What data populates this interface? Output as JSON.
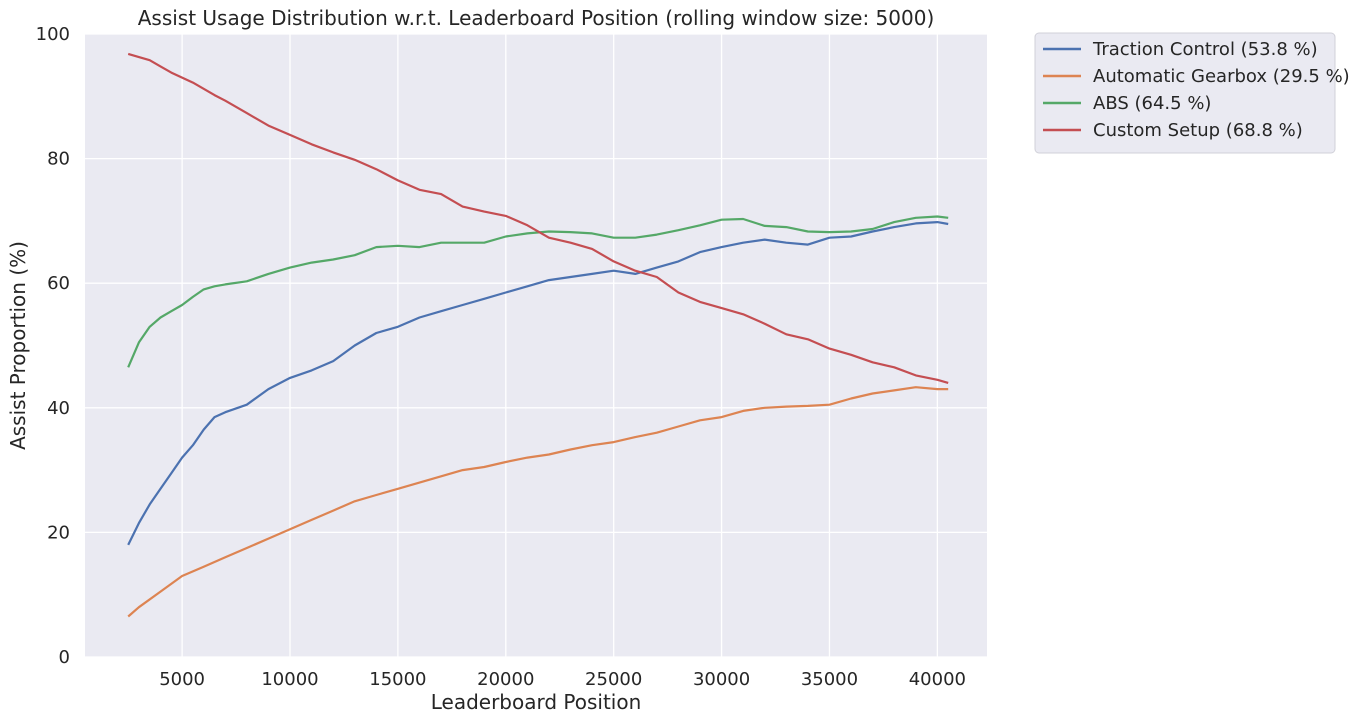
{
  "chart_data": {
    "type": "line",
    "title": "Assist Usage Distribution w.r.t. Leaderboard Position (rolling window size: 5000)",
    "xlabel": "Leaderboard Position",
    "ylabel": "Assist Proportion (%)",
    "xlim": [
      500,
      42300
    ],
    "ylim": [
      0,
      100
    ],
    "xticks": [
      5000,
      10000,
      15000,
      20000,
      25000,
      30000,
      35000,
      40000
    ],
    "yticks": [
      0,
      20,
      40,
      60,
      80,
      100
    ],
    "grid": true,
    "legend_position": "outside-top-right",
    "background_color": "#eaeaf2",
    "series": [
      {
        "name": "Traction Control (53.8 %)",
        "color": "#4c72b0",
        "x": [
          2500,
          3000,
          3500,
          4000,
          4500,
          5000,
          5500,
          6000,
          6500,
          7000,
          8000,
          9000,
          10000,
          11000,
          12000,
          13000,
          14000,
          15000,
          16000,
          17000,
          18000,
          19000,
          20000,
          21000,
          22000,
          23000,
          24000,
          25000,
          26000,
          27000,
          28000,
          29000,
          30000,
          31000,
          32000,
          33000,
          34000,
          35000,
          36000,
          37000,
          38000,
          39000,
          40000,
          40500
        ],
        "y": [
          18,
          21.5,
          24.5,
          27,
          29.5,
          32,
          34,
          36.5,
          38.5,
          39.3,
          40.5,
          43,
          44.8,
          46,
          47.5,
          50,
          52,
          53,
          54.5,
          55.5,
          56.5,
          57.5,
          58.5,
          59.5,
          60.5,
          61,
          61.5,
          62,
          61.5,
          62.5,
          63.5,
          65,
          65.8,
          66.5,
          67,
          66.5,
          66.2,
          67.3,
          67.5,
          68.3,
          69,
          69.6,
          69.8,
          69.5
        ]
      },
      {
        "name": "Automatic Gearbox (29.5 %)",
        "color": "#dd8452",
        "x": [
          2500,
          3000,
          4000,
          5000,
          6000,
          7000,
          8000,
          9000,
          10000,
          11000,
          12000,
          13000,
          14000,
          15000,
          16000,
          17000,
          18000,
          19000,
          20000,
          21000,
          22000,
          23000,
          24000,
          25000,
          26000,
          27000,
          28000,
          29000,
          30000,
          31000,
          32000,
          33000,
          34000,
          35000,
          36000,
          37000,
          38000,
          39000,
          40000,
          40500
        ],
        "y": [
          6.5,
          8,
          10.5,
          13,
          14.5,
          16,
          17.5,
          19,
          20.5,
          22,
          23.5,
          25,
          26,
          27,
          28,
          29,
          30,
          30.5,
          31.3,
          32,
          32.5,
          33.3,
          34,
          34.5,
          35.3,
          36,
          37,
          38,
          38.5,
          39.5,
          40,
          40.2,
          40.3,
          40.5,
          41.5,
          42.3,
          42.8,
          43.3,
          43,
          43
        ]
      },
      {
        "name": "ABS (64.5 %)",
        "color": "#55a868",
        "x": [
          2500,
          3000,
          3500,
          4000,
          4500,
          5000,
          5500,
          6000,
          6500,
          7000,
          8000,
          9000,
          10000,
          11000,
          12000,
          13000,
          14000,
          15000,
          16000,
          17000,
          18000,
          19000,
          20000,
          21000,
          22000,
          23000,
          24000,
          25000,
          26000,
          27000,
          28000,
          29000,
          30000,
          31000,
          32000,
          33000,
          34000,
          35000,
          36000,
          37000,
          38000,
          39000,
          40000,
          40500
        ],
        "y": [
          46.5,
          50.5,
          53,
          54.5,
          55.5,
          56.5,
          57.8,
          59,
          59.5,
          59.8,
          60.3,
          61.5,
          62.5,
          63.3,
          63.8,
          64.5,
          65.8,
          66,
          65.8,
          66.5,
          66.5,
          66.5,
          67.5,
          68,
          68.3,
          68.2,
          68,
          67.3,
          67.3,
          67.8,
          68.5,
          69.3,
          70.2,
          70.3,
          69.2,
          69,
          68.3,
          68.2,
          68.3,
          68.7,
          69.8,
          70.5,
          70.7,
          70.5
        ]
      },
      {
        "name": "Custom Setup (68.8 %)",
        "color": "#c44e52",
        "x": [
          2500,
          3000,
          3500,
          4000,
          4500,
          5000,
          5500,
          6000,
          6500,
          7000,
          8000,
          9000,
          10000,
          11000,
          12000,
          13000,
          14000,
          15000,
          16000,
          17000,
          18000,
          19000,
          20000,
          21000,
          22000,
          23000,
          24000,
          25000,
          26000,
          27000,
          28000,
          29000,
          30000,
          31000,
          32000,
          33000,
          34000,
          35000,
          36000,
          37000,
          38000,
          39000,
          40000,
          40500
        ],
        "y": [
          96.8,
          96.3,
          95.8,
          94.8,
          93.8,
          93,
          92.2,
          91.2,
          90.2,
          89.3,
          87.3,
          85.3,
          83.8,
          82.3,
          81,
          79.8,
          78.3,
          76.5,
          75,
          74.3,
          72.3,
          71.5,
          70.8,
          69.3,
          67.3,
          66.5,
          65.5,
          63.5,
          62,
          61,
          58.5,
          57,
          56,
          55,
          53.5,
          51.8,
          51,
          49.5,
          48.5,
          47.3,
          46.5,
          45.2,
          44.5,
          44
        ]
      }
    ]
  }
}
